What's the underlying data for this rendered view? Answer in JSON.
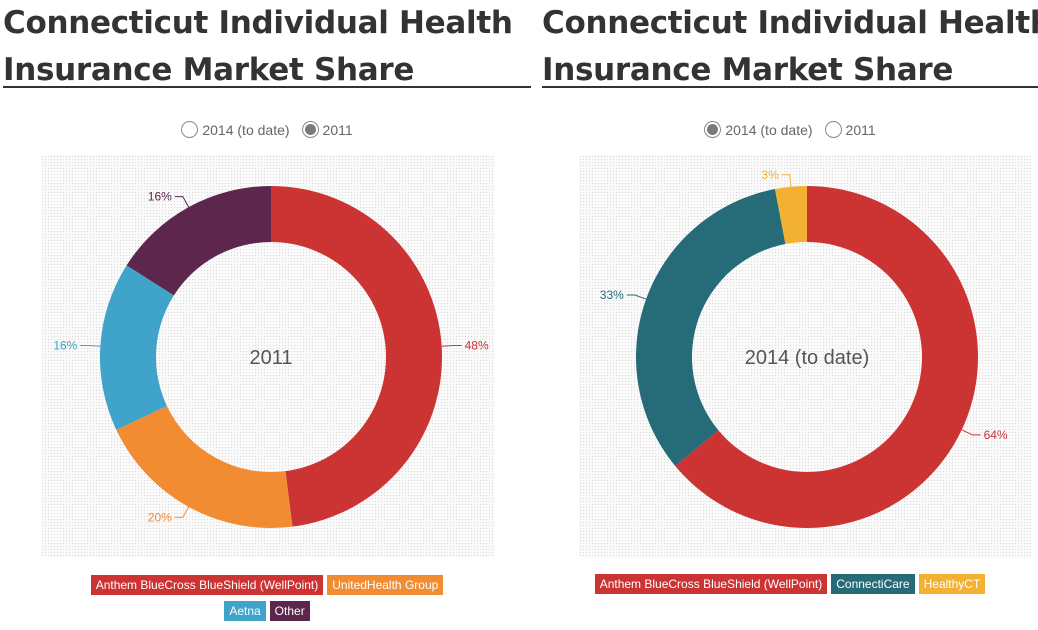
{
  "panels": [
    {
      "title_line1": "Connecticut Individual Health",
      "title_line2": "Insurance Market Share",
      "toggles": [
        {
          "label": "2014 (to date)",
          "checked": false
        },
        {
          "label": "2011",
          "checked": true
        }
      ],
      "center_label": "2011",
      "legend": [
        {
          "label": "Anthem BlueCross BlueShield (WellPoint)",
          "color": "#cc3333"
        },
        {
          "label": "UnitedHealth Group",
          "color": "#f28c33"
        },
        {
          "label": "Aetna",
          "color": "#40a3c9"
        },
        {
          "label": "Other",
          "color": "#5c264d"
        }
      ]
    },
    {
      "title_line1": "Connecticut Individual Health",
      "title_line2": "Insurance Market Share",
      "toggles": [
        {
          "label": "2014 (to date)",
          "checked": true
        },
        {
          "label": "2011",
          "checked": false
        }
      ],
      "center_label": "2014 (to date)",
      "legend": [
        {
          "label": "Anthem BlueCross BlueShield (WellPoint)",
          "color": "#cc3333"
        },
        {
          "label": "ConnectiCare",
          "color": "#256b78"
        },
        {
          "label": "HealthyCT",
          "color": "#f2b133"
        }
      ]
    }
  ],
  "chart_data": [
    {
      "type": "pie",
      "donut": true,
      "title": "Connecticut Individual Health Insurance Market Share",
      "center_label": "2011",
      "categories": [
        "Anthem BlueCross BlueShield (WellPoint)",
        "UnitedHealth Group",
        "Aetna",
        "Other"
      ],
      "values": [
        48,
        20,
        16,
        16
      ],
      "labels": [
        "48%",
        "20%",
        "16%",
        "16%"
      ],
      "colors": [
        "#cc3333",
        "#f28c33",
        "#40a3c9",
        "#5c264d"
      ],
      "legend_position": "bottom"
    },
    {
      "type": "pie",
      "donut": true,
      "title": "Connecticut Individual Health Insurance Market Share",
      "center_label": "2014 (to date)",
      "categories": [
        "Anthem BlueCross BlueShield (WellPoint)",
        "ConnectiCare",
        "HealthyCT"
      ],
      "values": [
        64,
        33,
        3
      ],
      "labels": [
        "64%",
        "33%",
        "3%"
      ],
      "colors": [
        "#cc3333",
        "#256b78",
        "#f2b133"
      ],
      "legend_position": "bottom"
    }
  ]
}
